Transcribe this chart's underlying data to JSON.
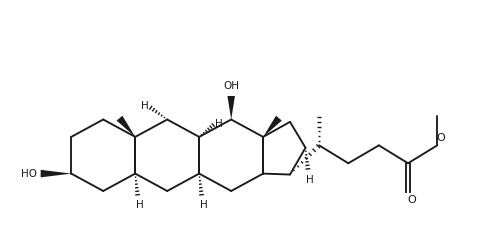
{
  "bg_color": "#ffffff",
  "line_color": "#1a1a1a",
  "fig_width": 5.0,
  "fig_height": 2.39,
  "dpi": 100,
  "lw": 1.35,
  "fs": 7.5,
  "xlim": [
    -0.8,
    9.8
  ],
  "ylim": [
    -2.5,
    1.8
  ]
}
